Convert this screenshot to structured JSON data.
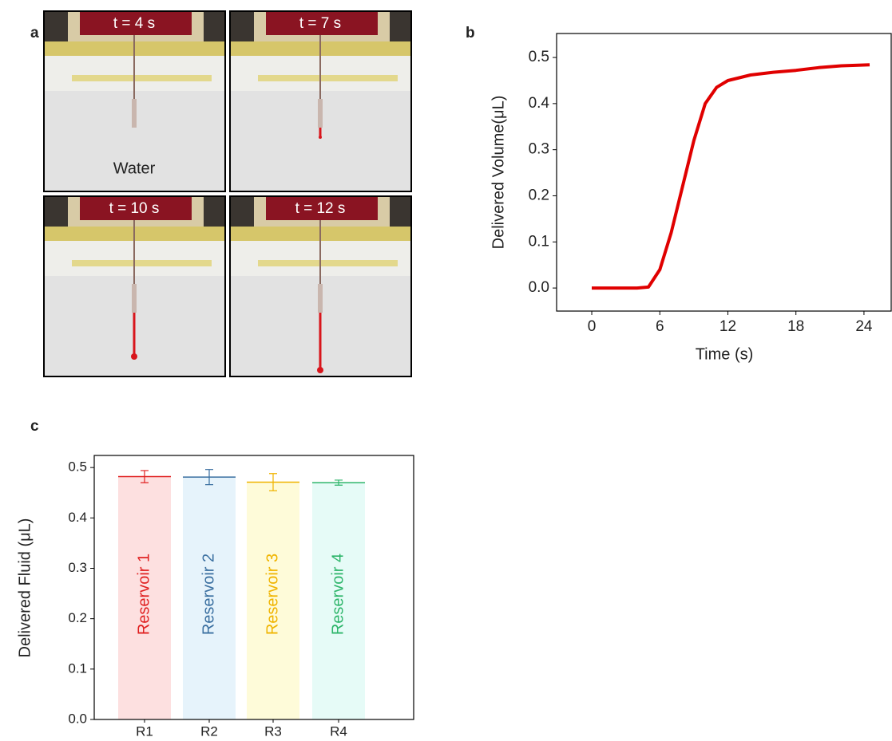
{
  "panel_labels": [
    "a",
    "b",
    "c"
  ],
  "panel_a": {
    "frames": [
      "t = 4 s",
      "t = 7 s",
      "t = 10 s",
      "t = 12 s"
    ],
    "caption": "Water"
  },
  "chart_data": [
    {
      "type": "line",
      "x_label": "Time  (s)",
      "y_label": "Delivered  Volume(μL)",
      "x": [
        0,
        1,
        2,
        3,
        4,
        5,
        6,
        7,
        8,
        9,
        10,
        11,
        12,
        14,
        16,
        18,
        20,
        22,
        24.5
      ],
      "series": [
        {
          "name": "Water",
          "color": "#e00000",
          "values": [
            0,
            0,
            0,
            0,
            0,
            0.002,
            0.04,
            0.12,
            0.22,
            0.32,
            0.4,
            0.435,
            0.45,
            0.462,
            0.468,
            0.472,
            0.478,
            0.482,
            0.484
          ]
        }
      ],
      "xlim": [
        -3.1,
        26.4
      ],
      "ylim": [
        -0.05,
        0.552
      ],
      "xticks": [
        0,
        6,
        12,
        18,
        24
      ],
      "yticks": [
        {
          "value": 0,
          "label": "0.0"
        },
        0.1,
        0.2,
        0.3,
        0.4,
        0.5
      ]
    },
    {
      "type": "bar",
      "y_label": "Delivered Fluid (μL)",
      "categories": [
        "R1",
        "R2",
        "R3",
        "R4"
      ],
      "values": [
        0.482,
        0.481,
        0.471,
        0.47
      ],
      "errors": [
        0.012,
        0.015,
        0.017,
        0.005
      ],
      "bar_labels": [
        "Reservoir 1",
        "Reservoir 2",
        "Reservoir 3",
        "Reservoir 4"
      ],
      "colors": [
        "#e02020",
        "#3a6fa0",
        "#f0b400",
        "#2db56a"
      ],
      "fill_colors": [
        "#fde0e0",
        "#e6f3fb",
        "#fefbd9",
        "#e6fbf7"
      ],
      "ylim": [
        0,
        0.524
      ],
      "yticks": [
        {
          "value": 0,
          "label": "0.0"
        },
        0.1,
        0.2,
        0.3,
        0.4,
        0.5
      ]
    }
  ]
}
